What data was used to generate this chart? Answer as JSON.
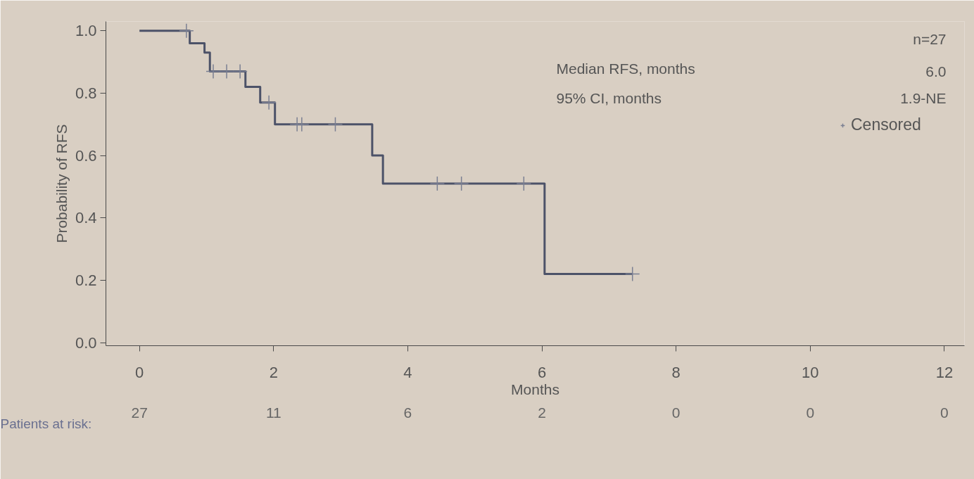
{
  "chart_data": {
    "type": "step",
    "xlabel": "Months",
    "ylabel": "Probability of RFS",
    "xlim": [
      -0.5,
      12.3
    ],
    "ylim": [
      -0.01,
      1.03
    ],
    "xticks": [
      0,
      2,
      4,
      6,
      8,
      10,
      12
    ],
    "yticks": [
      {
        "value": 0,
        "label": "0.0"
      },
      {
        "value": 0.2,
        "label": "0.2"
      },
      {
        "value": 0.4,
        "label": "0.4"
      },
      {
        "value": 0.6,
        "label": "0.6"
      },
      {
        "value": 0.8,
        "label": "0.8"
      },
      {
        "value": 1,
        "label": "1.0"
      }
    ],
    "series": [
      {
        "type": "step",
        "color": "#4c5268",
        "x": [
          0,
          0.75,
          0.97,
          1.05,
          1.58,
          1.8,
          2.02,
          3.47,
          3.63,
          6.04,
          7.35
        ],
        "values": [
          1.0,
          0.96,
          0.93,
          0.87,
          0.82,
          0.77,
          0.7,
          0.6,
          0.51,
          0.22,
          0.22
        ]
      },
      {
        "type": "scatter",
        "name": "Censored",
        "color": "#7a7f92",
        "marker": "cross",
        "x": [
          0.7,
          1.1,
          1.3,
          1.5,
          1.93,
          2.35,
          2.42,
          2.92,
          4.44,
          4.8,
          5.73,
          7.35
        ],
        "values": [
          1.0,
          0.87,
          0.87,
          0.87,
          0.77,
          0.7,
          0.7,
          0.7,
          0.51,
          0.51,
          0.51,
          0.22
        ]
      }
    ],
    "legend": "top right",
    "grid": false,
    "annotations": [
      "n=27",
      "Median RFS, months",
      "6.0",
      "95% CI, months",
      "1.9-NE",
      "Patients at risk:",
      "27",
      "11",
      "6",
      "2",
      "0",
      "0",
      "0"
    ]
  }
}
